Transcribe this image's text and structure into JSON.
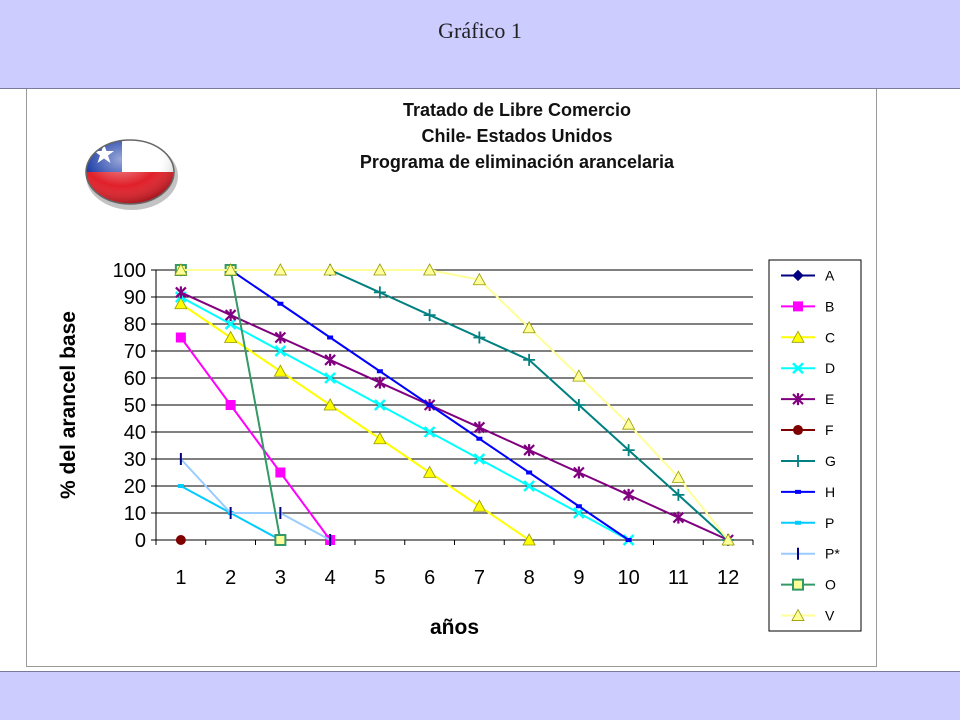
{
  "slide": {
    "title": "Gráfico 1"
  },
  "icons": {
    "flag": "chile-flag-icon"
  },
  "colors": {
    "background": "#ccccff",
    "plot_bg": "#ffffff",
    "grid": "#000000"
  },
  "chart_data": {
    "type": "line",
    "title_lines": [
      "Tratado de Libre Comercio",
      "Chile- Estados Unidos",
      "Programa de eliminación  arancelaria"
    ],
    "xlabel": "años",
    "ylabel": "% del arancel base",
    "categories": [
      "1",
      "2",
      "3",
      "4",
      "5",
      "6",
      "7",
      "8",
      "9",
      "10",
      "11",
      "12"
    ],
    "ylim": [
      0,
      100
    ],
    "yticks": [
      "0",
      "10",
      "20",
      "30",
      "40",
      "50",
      "60",
      "70",
      "80",
      "90",
      "100"
    ],
    "grid": "horizontal",
    "legend_position": "right",
    "series": [
      {
        "name": "A",
        "color": "#000080",
        "marker": "diamond-filled",
        "points": [
          [
            1,
            100
          ],
          [
            2,
            100
          ]
        ]
      },
      {
        "name": "B",
        "color": "#ff00ff",
        "marker": "square-filled",
        "points": [
          [
            1,
            75
          ],
          [
            2,
            50
          ],
          [
            3,
            25
          ],
          [
            4,
            0
          ]
        ]
      },
      {
        "name": "C",
        "color": "#ffff00",
        "marker": "triangle",
        "points": [
          [
            1,
            87.5
          ],
          [
            2,
            75
          ],
          [
            3,
            62.5
          ],
          [
            4,
            50
          ],
          [
            5,
            37.5
          ],
          [
            6,
            25
          ],
          [
            7,
            12.5
          ],
          [
            8,
            0
          ]
        ]
      },
      {
        "name": "D",
        "color": "#00ffff",
        "marker": "x",
        "points": [
          [
            1,
            90
          ],
          [
            2,
            80
          ],
          [
            3,
            70
          ],
          [
            4,
            60
          ],
          [
            5,
            50
          ],
          [
            6,
            40
          ],
          [
            7,
            30
          ],
          [
            8,
            20
          ],
          [
            9,
            10
          ],
          [
            10,
            0
          ]
        ]
      },
      {
        "name": "E",
        "color": "#800080",
        "marker": "star",
        "points": [
          [
            1,
            91.7
          ],
          [
            2,
            83.3
          ],
          [
            3,
            75
          ],
          [
            4,
            66.7
          ],
          [
            5,
            58.3
          ],
          [
            6,
            50
          ],
          [
            7,
            41.7
          ],
          [
            8,
            33.3
          ],
          [
            9,
            25
          ],
          [
            10,
            16.7
          ],
          [
            11,
            8.3
          ],
          [
            12,
            0
          ]
        ]
      },
      {
        "name": "F",
        "color": "#800000",
        "marker": "circle-filled",
        "points": [
          [
            1,
            0
          ]
        ]
      },
      {
        "name": "G",
        "color": "#008080",
        "marker": "plus",
        "points": [
          [
            4,
            100
          ],
          [
            5,
            91.7
          ],
          [
            6,
            83.3
          ],
          [
            7,
            75
          ],
          [
            8,
            66.7
          ],
          [
            9,
            50
          ],
          [
            10,
            33.3
          ],
          [
            11,
            16.7
          ],
          [
            12,
            0
          ]
        ]
      },
      {
        "name": "H",
        "color": "#0000ff",
        "marker": "dash",
        "points": [
          [
            2,
            100
          ],
          [
            3,
            87.5
          ],
          [
            4,
            75
          ],
          [
            5,
            62.5
          ],
          [
            6,
            50
          ],
          [
            7,
            37.5
          ],
          [
            8,
            25
          ],
          [
            9,
            12.5
          ],
          [
            10,
            0
          ]
        ]
      },
      {
        "name": "P",
        "color": "#00ccff",
        "marker": "dash",
        "points": [
          [
            1,
            20
          ],
          [
            2,
            10
          ],
          [
            3,
            0
          ]
        ]
      },
      {
        "name": "P*",
        "color": "#99ccff",
        "marker": "bar",
        "points": [
          [
            1,
            30
          ],
          [
            2,
            10
          ],
          [
            3,
            10
          ],
          [
            4,
            0
          ]
        ]
      },
      {
        "name": "O",
        "color": "#339966",
        "marker": "square-open",
        "points": [
          [
            1,
            100
          ],
          [
            2,
            100
          ],
          [
            3,
            0
          ]
        ]
      },
      {
        "name": "V",
        "color": "#ffff99",
        "marker": "triangle",
        "points": [
          [
            1,
            100
          ],
          [
            2,
            100
          ],
          [
            3,
            100
          ],
          [
            4,
            100
          ],
          [
            5,
            100
          ],
          [
            6,
            100
          ],
          [
            7,
            96.4
          ],
          [
            8,
            78.6
          ],
          [
            9,
            60.7
          ],
          [
            10,
            42.9
          ],
          [
            11,
            23.2
          ],
          [
            12,
            0
          ]
        ]
      }
    ]
  }
}
